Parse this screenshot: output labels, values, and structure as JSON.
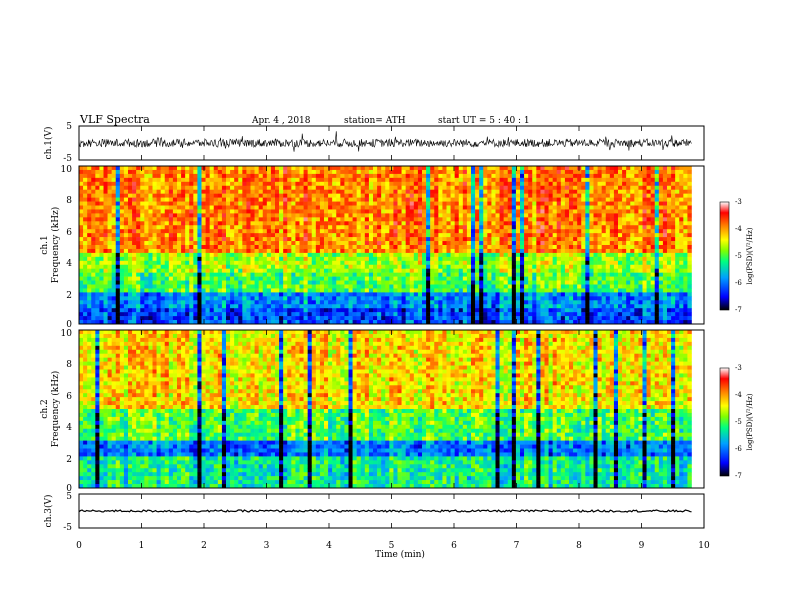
{
  "header": {
    "title": "VLF  Spectra",
    "date": "Apr. 4  , 2018",
    "station": "station= ATH",
    "start": "start  UT  =    5  : 40 : 1"
  },
  "chart_data": {
    "type": "heatmap",
    "xlabel": "Time  (min)",
    "xlim": [
      0,
      10
    ],
    "xticks": [
      "0",
      "1",
      "2",
      "3",
      "4",
      "5",
      "6",
      "7",
      "8",
      "9",
      "10"
    ],
    "data_end_min": 9.8,
    "panels": [
      {
        "id": "ch1-waveform",
        "kind": "waveform",
        "ylabel": "ch.1(V)",
        "ylim": [
          -5,
          5
        ],
        "yticks": [
          "5",
          "-5"
        ],
        "baseline": 0,
        "amplitude": 1.2
      },
      {
        "id": "ch1-spectrogram",
        "kind": "spectrogram",
        "ylabel_top": "ch.1",
        "ylabel": "Frequency  (kHz)",
        "ylim": [
          0,
          10
        ],
        "yticks": [
          "0",
          "2",
          "4",
          "6",
          "8",
          "10"
        ],
        "colorbar": {
          "label": "log(PSD)(V²/Hz)",
          "range": [
            -7,
            -3
          ],
          "ticks": [
            "-3",
            "-4",
            "-5",
            "-6",
            "-7"
          ]
        },
        "bands_kHz": [
          {
            "from": 0,
            "to": 0.9,
            "log_psd": -6.2
          },
          {
            "from": 0.9,
            "to": 2.0,
            "log_psd": -5.9
          },
          {
            "from": 2.0,
            "to": 3.2,
            "log_psd": -5.0
          },
          {
            "from": 3.2,
            "to": 4.5,
            "log_psd": -4.7
          },
          {
            "from": 4.5,
            "to": 10,
            "log_psd": -3.9
          }
        ]
      },
      {
        "id": "ch2-spectrogram",
        "kind": "spectrogram",
        "ylabel_top": "ch.2",
        "ylabel": "Frequency  (kHz)",
        "ylim": [
          0,
          10
        ],
        "yticks": [
          "0",
          "2",
          "4",
          "6",
          "8",
          "10"
        ],
        "colorbar": {
          "label": "log(PSD)(V²/Hz)",
          "range": [
            -7,
            -3
          ],
          "ticks": [
            "-3",
            "-4",
            "-5",
            "-6",
            "-7"
          ]
        },
        "bands_kHz": [
          {
            "from": 0,
            "to": 2.0,
            "log_psd": -5.3
          },
          {
            "from": 2.0,
            "to": 2.9,
            "log_psd": -6.0
          },
          {
            "from": 2.9,
            "to": 5.0,
            "log_psd": -5.0
          },
          {
            "from": 5.0,
            "to": 10,
            "log_psd": -4.3
          }
        ]
      },
      {
        "id": "ch3-waveform",
        "kind": "waveform",
        "ylabel": "ch.3(V)",
        "ylim": [
          -5,
          5
        ],
        "yticks": [
          "5",
          "-5"
        ],
        "baseline": 0,
        "amplitude": 0.3
      }
    ]
  },
  "colors": {
    "axis": "#000000",
    "trace": "#000000",
    "colormap": [
      "#000000",
      "#0000ff",
      "#00a0ff",
      "#00ff80",
      "#80ff00",
      "#ffff00",
      "#ff8000",
      "#ff0000",
      "#ffffff"
    ]
  }
}
